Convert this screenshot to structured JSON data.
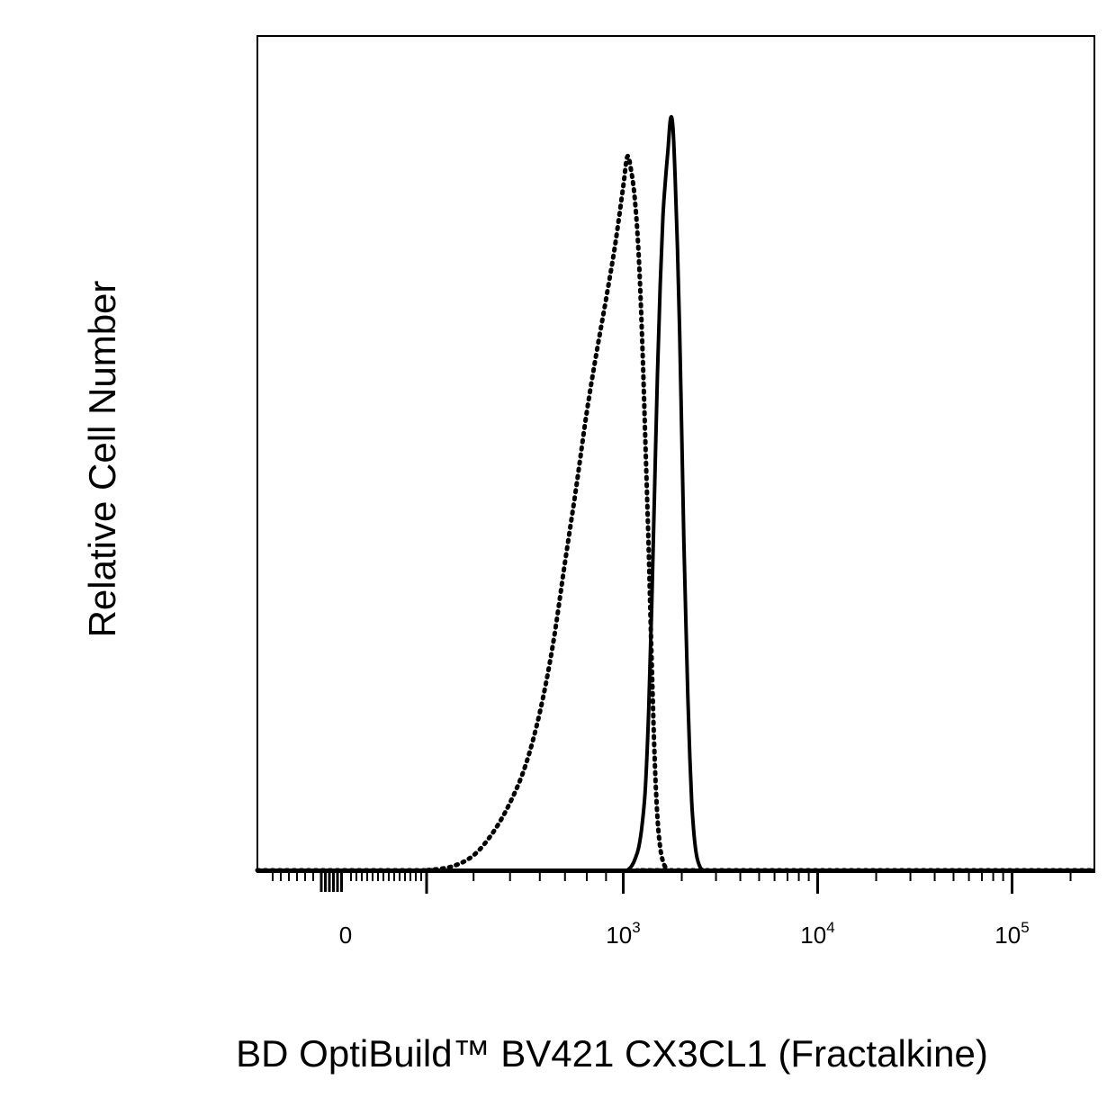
{
  "chart_data": {
    "type": "line",
    "title": "",
    "xlabel": "BD OptiBuild™ BV421 CX3CL1 (Fractalkine)",
    "ylabel": "Relative Cell Number",
    "x_scale": "biexponential",
    "xlim": [
      -200,
      200000
    ],
    "ylim": [
      0,
      100
    ],
    "grid": false,
    "x_ticks": [
      {
        "value": 0,
        "base": "0",
        "exp": ""
      },
      {
        "value": 1000,
        "base": "10",
        "exp": "3"
      },
      {
        "value": 10000,
        "base": "10",
        "exp": "4"
      },
      {
        "value": 100000,
        "base": "10",
        "exp": "5"
      }
    ],
    "series": [
      {
        "style": "dotted",
        "x": [
          300,
          350,
          400,
          450,
          500,
          550,
          600,
          650,
          700,
          750,
          800,
          850,
          900,
          950,
          1000,
          1050,
          1100,
          1150,
          1200,
          1250,
          1300,
          1350,
          1400,
          1450,
          1500,
          1550,
          1600,
          1650,
          1700
        ],
        "y": [
          0,
          0.5,
          2,
          5,
          9,
          14,
          21,
          30,
          41,
          51,
          61,
          69,
          76,
          83,
          91,
          95,
          93,
          89,
          82,
          71,
          57,
          43,
          28,
          15,
          7,
          3,
          1.2,
          0.4,
          0
        ]
      },
      {
        "style": "solid",
        "x": [
          1050,
          1100,
          1150,
          1200,
          1250,
          1300,
          1350,
          1400,
          1450,
          1500,
          1550,
          1600,
          1650,
          1700,
          1750,
          1800,
          1850,
          1900,
          1950,
          2000,
          2050,
          2100,
          2150,
          2200,
          2250,
          2300,
          2350,
          2400,
          2450,
          2500,
          2550,
          2600
        ],
        "y": [
          0,
          0.5,
          1.5,
          3,
          6,
          11,
          21,
          35,
          51,
          66,
          78,
          87,
          92,
          96,
          100,
          99,
          92,
          83,
          72,
          58,
          44,
          33,
          23,
          15,
          9,
          5.5,
          3,
          1.6,
          0.8,
          0.3,
          0.1,
          0
        ]
      }
    ]
  }
}
